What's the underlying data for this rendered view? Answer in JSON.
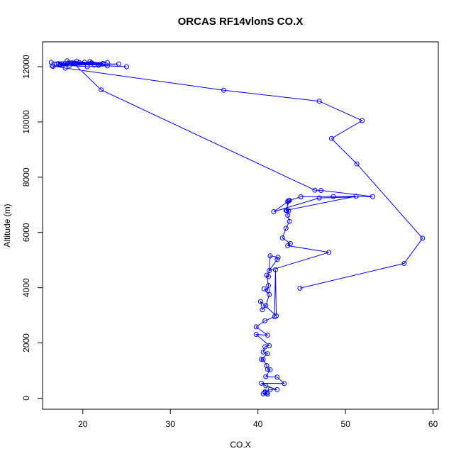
{
  "chart_data": {
    "type": "line",
    "title": "ORCAS RF14vlonS CO.X",
    "xlabel": "CO.X",
    "ylabel": "Altitude (m)",
    "xlim": [
      15.4,
      60.6
    ],
    "ylim": [
      -400,
      12900
    ],
    "xticks": [
      20,
      30,
      40,
      50,
      60
    ],
    "yticks": [
      0,
      2000,
      4000,
      6000,
      8000,
      10000,
      12000
    ],
    "grid": false,
    "legend": "none",
    "color": "#0000ff",
    "series": [
      {
        "points": [
          [
            44.8,
            3980
          ],
          [
            56.7,
            4880
          ],
          [
            58.8,
            5790
          ],
          [
            51.3,
            8480
          ],
          [
            48.4,
            9400
          ],
          [
            51.9,
            10050
          ],
          [
            47.0,
            10750
          ],
          [
            36.1,
            11150
          ],
          [
            18.0,
            11950
          ],
          [
            16.5,
            12030
          ],
          [
            24.1,
            12100
          ],
          [
            17.2,
            12110
          ],
          [
            22.8,
            12150
          ],
          [
            16.4,
            12160
          ],
          [
            19.3,
            12200
          ],
          [
            18.2,
            12210
          ],
          [
            21.0,
            12140
          ],
          [
            17.4,
            12070
          ],
          [
            20.5,
            12000
          ],
          [
            22.8,
            12030
          ],
          [
            25.0,
            12000
          ],
          [
            21.8,
            12050
          ],
          [
            19.6,
            12150
          ],
          [
            17.0,
            12100
          ],
          [
            18.5,
            12050
          ],
          [
            16.6,
            12010
          ],
          [
            20.8,
            12180
          ],
          [
            22.3,
            12120
          ],
          [
            18.8,
            12140
          ],
          [
            20.2,
            12160
          ],
          [
            17.6,
            12090
          ],
          [
            21.3,
            12060
          ],
          [
            19.0,
            12110
          ],
          [
            22.1,
            11160
          ],
          [
            46.5,
            7530
          ],
          [
            47.2,
            7520
          ],
          [
            53.1,
            7300
          ],
          [
            47.0,
            7250
          ],
          [
            41.8,
            6750
          ],
          [
            43.6,
            7160
          ],
          [
            43.2,
            6800
          ],
          [
            51.2,
            7310
          ],
          [
            48.6,
            7300
          ],
          [
            44.9,
            7290
          ],
          [
            43.5,
            7150
          ],
          [
            43.4,
            7120
          ],
          [
            43.3,
            6790
          ],
          [
            43.5,
            6780
          ],
          [
            43.4,
            6620
          ],
          [
            43.6,
            6400
          ],
          [
            43.2,
            6150
          ],
          [
            42.8,
            5800
          ],
          [
            43.7,
            5600
          ],
          [
            43.4,
            5520
          ],
          [
            48.1,
            5280
          ],
          [
            41.3,
            4620
          ],
          [
            42.2,
            5020
          ],
          [
            42.3,
            5100
          ],
          [
            41.4,
            5150
          ],
          [
            41.2,
            4400
          ],
          [
            41.0,
            4450
          ],
          [
            41.2,
            4080
          ],
          [
            41.1,
            3900
          ],
          [
            40.7,
            3960
          ],
          [
            41.3,
            3750
          ],
          [
            40.9,
            3350
          ],
          [
            40.5,
            3200
          ],
          [
            40.3,
            3500
          ],
          [
            42.1,
            2980
          ],
          [
            42.0,
            4650
          ],
          [
            41.9,
            2950
          ],
          [
            40.8,
            2800
          ],
          [
            39.8,
            2580
          ],
          [
            41.1,
            2280
          ],
          [
            39.8,
            2310
          ],
          [
            41.3,
            1900
          ],
          [
            40.8,
            1860
          ],
          [
            40.6,
            1670
          ],
          [
            41.1,
            1610
          ],
          [
            40.4,
            1410
          ],
          [
            40.6,
            1400
          ],
          [
            41.0,
            1180
          ],
          [
            41.1,
            1050
          ],
          [
            41.4,
            1030
          ],
          [
            40.9,
            780
          ],
          [
            42.2,
            760
          ],
          [
            43.0,
            530
          ],
          [
            40.4,
            540
          ],
          [
            40.9,
            450
          ],
          [
            42.2,
            310
          ],
          [
            41.4,
            310
          ],
          [
            40.8,
            230
          ],
          [
            41.1,
            150
          ],
          [
            40.6,
            160
          ],
          [
            41.0,
            180
          ],
          [
            40.8,
            200
          ]
        ]
      }
    ]
  }
}
